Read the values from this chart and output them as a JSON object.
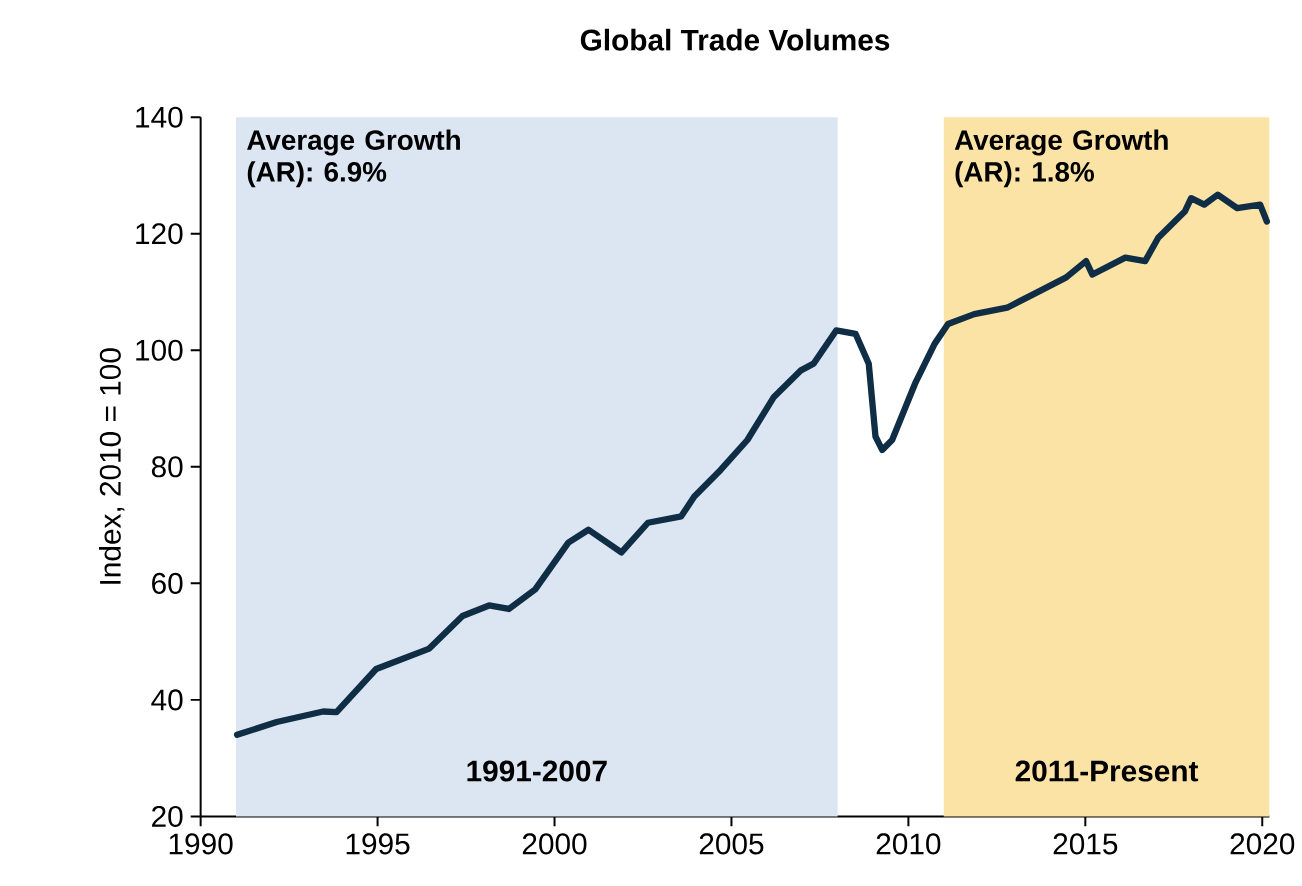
{
  "chart_data": {
    "type": "line",
    "title": "Global Trade Volumes",
    "ylabel": "Index, 2010 = 100",
    "xlim": [
      1990,
      2020.2
    ],
    "xticks": [
      1990,
      1995,
      2000,
      2005,
      2010,
      2015,
      2020
    ],
    "ylim": [
      20,
      140
    ],
    "yticks": [
      20,
      40,
      60,
      80,
      100,
      120,
      140
    ],
    "marker": "none",
    "line_style": "solid",
    "bands": [
      {
        "axis": "x",
        "from": 1991.0,
        "to": 2008.0,
        "label": "1991-2007",
        "color": "#dce6f2"
      },
      {
        "axis": "x",
        "from": 2011.0,
        "to": 2020.2,
        "label": "2011-Present",
        "color": "#fbe3a5"
      }
    ],
    "annotations": [
      "Average Growth (AR): 6.9%",
      "Average Growth (AR): 1.8%"
    ],
    "series": [
      {
        "color": "#0f2d45",
        "x": [
          1991.03,
          1992.15,
          1993.46,
          1993.84,
          1994.96,
          1996.46,
          1997.4,
          1998.15,
          1998.71,
          1999.46,
          2000.39,
          2000.96,
          2001.89,
          2002.64,
          2003.58,
          2003.95,
          2004.7,
          2005.45,
          2006.2,
          2006.95,
          2007.32,
          2007.96,
          2008.51,
          2008.88,
          2009.07,
          2009.26,
          2009.54,
          2010.19,
          2010.74,
          2011.12,
          2011.86,
          2012.79,
          2013.72,
          2014.46,
          2015.02,
          2015.2,
          2016.13,
          2016.69,
          2017.06,
          2017.81,
          2017.99,
          2018.36,
          2018.74,
          2019.29,
          2019.94,
          2020.13
        ],
        "values": [
          34.0,
          36.2,
          38.0,
          37.9,
          45.3,
          48.8,
          54.4,
          56.2,
          55.6,
          59.0,
          67.0,
          69.2,
          65.3,
          70.4,
          71.5,
          74.9,
          79.5,
          84.6,
          92.0,
          96.5,
          97.7,
          103.4,
          102.8,
          97.7,
          85.2,
          82.9,
          84.6,
          94.3,
          101.1,
          104.5,
          106.2,
          107.3,
          110.2,
          112.5,
          115.3,
          113.0,
          115.9,
          115.3,
          119.3,
          123.8,
          126.1,
          125.0,
          126.7,
          124.4,
          125.0,
          122.1
        ]
      }
    ]
  }
}
